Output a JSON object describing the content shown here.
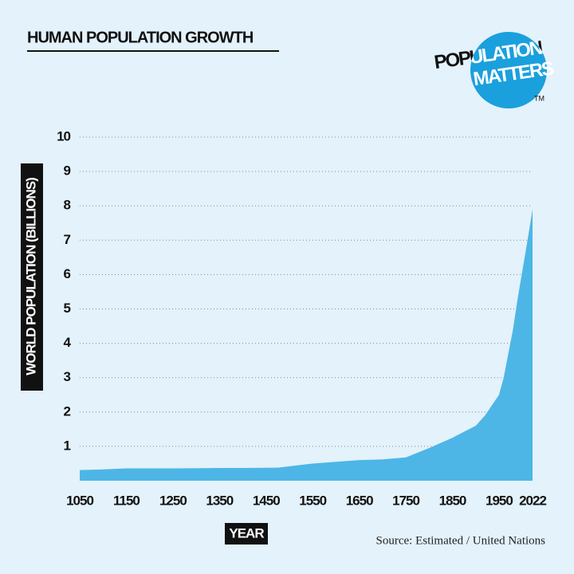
{
  "chart_data": {
    "type": "area",
    "title": "HUMAN POPULATION GROWTH",
    "y_label": "WORLD POPULATION (BILLIONS)",
    "x_label": "YEAR",
    "source": "Source: Estimated / United Nations",
    "logo": {
      "line1": "POPULATION",
      "line2": "MATTERS",
      "mark": "TM"
    },
    "x": [
      1050,
      1100,
      1150,
      1250,
      1350,
      1400,
      1475,
      1550,
      1600,
      1650,
      1700,
      1750,
      1800,
      1850,
      1900,
      1920,
      1950,
      1960,
      1970,
      1980,
      1990,
      2000,
      2010,
      2022
    ],
    "series": [
      {
        "name": "World population",
        "color": "#4db6e6",
        "values": [
          0.31,
          0.33,
          0.36,
          0.36,
          0.37,
          0.37,
          0.38,
          0.5,
          0.55,
          0.6,
          0.62,
          0.68,
          0.95,
          1.25,
          1.6,
          1.9,
          2.5,
          3.0,
          3.7,
          4.4,
          5.3,
          6.1,
          6.9,
          7.9
        ]
      }
    ],
    "xlim": [
      1050,
      2022
    ],
    "xticks": [
      1050,
      1150,
      1250,
      1350,
      1450,
      1550,
      1650,
      1750,
      1850,
      1950,
      2022
    ],
    "ylim": [
      0,
      10
    ],
    "yticks": [
      1,
      2,
      3,
      4,
      5,
      6,
      7,
      8,
      9,
      10
    ],
    "grid": true
  }
}
